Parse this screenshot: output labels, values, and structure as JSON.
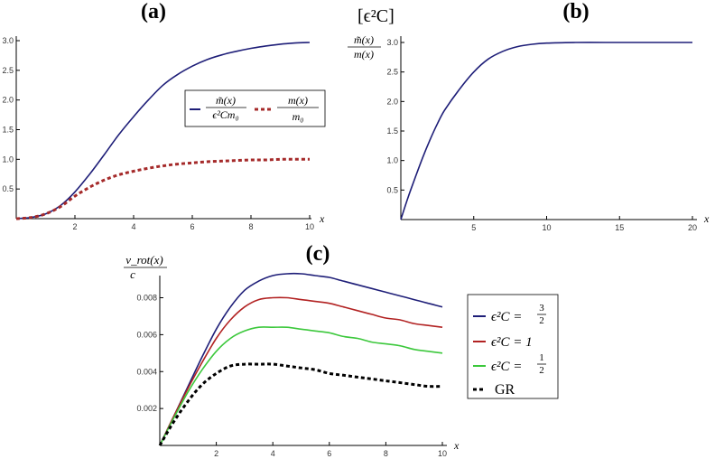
{
  "chart_data": [
    {
      "id": "a",
      "panel_label": "(a)",
      "type": "line",
      "xlabel": "x",
      "xlim": [
        0,
        10
      ],
      "ylim": [
        0,
        3.0
      ],
      "xticks": [
        "2",
        "4",
        "6",
        "8",
        "10"
      ],
      "yticks": [
        "0.5",
        "1.0",
        "1.5",
        "2.0",
        "2.5",
        "3.0"
      ],
      "legend_position": "middle-right",
      "series": [
        {
          "name": "m~(x) / (eps^2 C m0)",
          "legend_label": {
            "num": "m̃(x)",
            "den": "ϵ²Cm₀"
          },
          "color": "#1e1e78",
          "dash": "solid",
          "x": [
            0,
            0.5,
            1,
            1.5,
            2,
            2.5,
            3,
            3.5,
            4,
            4.5,
            5,
            5.5,
            6,
            6.5,
            7,
            7.5,
            8,
            8.5,
            9,
            9.5,
            10
          ],
          "values": [
            0,
            0.02,
            0.08,
            0.22,
            0.45,
            0.75,
            1.08,
            1.42,
            1.72,
            2.0,
            2.25,
            2.43,
            2.57,
            2.68,
            2.76,
            2.82,
            2.87,
            2.91,
            2.94,
            2.96,
            2.97
          ]
        },
        {
          "name": "m(x) / m0",
          "legend_label": {
            "num": "m(x)",
            "den": "m₀"
          },
          "color": "#a52a2a",
          "dash": "dashed",
          "x": [
            0,
            0.5,
            1,
            1.5,
            2,
            2.5,
            3,
            3.5,
            4,
            4.5,
            5,
            5.5,
            6,
            6.5,
            7,
            7.5,
            8,
            8.5,
            9,
            9.5,
            10
          ],
          "values": [
            0,
            0.02,
            0.08,
            0.2,
            0.38,
            0.53,
            0.65,
            0.74,
            0.8,
            0.85,
            0.89,
            0.92,
            0.94,
            0.96,
            0.97,
            0.98,
            0.99,
            0.99,
            1.0,
            1.0,
            1.0
          ]
        }
      ]
    },
    {
      "id": "b",
      "panel_label": "(b)",
      "type": "line",
      "title": "[ϵ²C]",
      "xlabel": "x",
      "ylabel": {
        "num": "m̃(x)",
        "den": "m(x)"
      },
      "xlim": [
        0,
        20
      ],
      "ylim": [
        0,
        3.0
      ],
      "xticks": [
        "5",
        "10",
        "15",
        "20"
      ],
      "yticks": [
        "0.5",
        "1.0",
        "1.5",
        "2.0",
        "2.5",
        "3.0"
      ],
      "series": [
        {
          "name": "m~(x)/m(x)",
          "color": "#1e1e78",
          "dash": "solid",
          "x": [
            0,
            0.5,
            1,
            1.5,
            2,
            2.5,
            3,
            4,
            5,
            6,
            7,
            8,
            9,
            10,
            12,
            14,
            16,
            18,
            20
          ],
          "values": [
            0,
            0.38,
            0.72,
            1.05,
            1.35,
            1.62,
            1.85,
            2.2,
            2.5,
            2.72,
            2.85,
            2.93,
            2.97,
            2.99,
            3.0,
            3.0,
            3.0,
            3.0,
            3.0
          ]
        }
      ]
    },
    {
      "id": "c",
      "panel_label": "(c)",
      "type": "line",
      "xlabel": "x",
      "ylabel": {
        "num": "v_rot(x)",
        "den": "c"
      },
      "xlim": [
        0,
        10
      ],
      "ylim": [
        0,
        0.0092
      ],
      "xticks": [
        "2",
        "4",
        "6",
        "8",
        "10"
      ],
      "yticks": [
        "0.002",
        "0.004",
        "0.006",
        "0.008"
      ],
      "legend_position": "right",
      "series": [
        {
          "name": "eps^2 C = 3/2",
          "legend_label": {
            "prefix": "ϵ²C = ",
            "frac_num": "3",
            "frac_den": "2"
          },
          "color": "#1e1e78",
          "dash": "solid",
          "x": [
            0,
            0.5,
            1,
            1.5,
            2,
            2.5,
            3,
            3.5,
            4,
            4.5,
            5,
            5.5,
            6,
            6.5,
            7,
            7.5,
            8,
            8.5,
            9,
            9.5,
            10
          ],
          "values": [
            0,
            0.0016,
            0.0032,
            0.0048,
            0.0063,
            0.0075,
            0.0084,
            0.0089,
            0.0092,
            0.0093,
            0.0093,
            0.0092,
            0.0091,
            0.0089,
            0.0087,
            0.0085,
            0.0083,
            0.0081,
            0.0079,
            0.0077,
            0.0075
          ]
        },
        {
          "name": "eps^2 C = 1",
          "legend_label": {
            "prefix": "ϵ²C = 1",
            "frac_num": "",
            "frac_den": ""
          },
          "color": "#b22222",
          "dash": "solid",
          "x": [
            0,
            0.5,
            1,
            1.5,
            2,
            2.5,
            3,
            3.5,
            4,
            4.5,
            5,
            5.5,
            6,
            6.5,
            7,
            7.5,
            8,
            8.5,
            9,
            9.5,
            10
          ],
          "values": [
            0,
            0.0016,
            0.0031,
            0.0045,
            0.0058,
            0.0068,
            0.0075,
            0.0079,
            0.008,
            0.008,
            0.0079,
            0.0078,
            0.0077,
            0.0075,
            0.0073,
            0.0071,
            0.0069,
            0.0068,
            0.0066,
            0.0065,
            0.0064
          ]
        },
        {
          "name": "eps^2 C = 1/2",
          "legend_label": {
            "prefix": "ϵ²C = ",
            "frac_num": "1",
            "frac_den": "2"
          },
          "color": "#3cc83c",
          "dash": "solid",
          "x": [
            0,
            0.5,
            1,
            1.5,
            2,
            2.5,
            3,
            3.5,
            4,
            4.5,
            5,
            5.5,
            6,
            6.5,
            7,
            7.5,
            8,
            8.5,
            9,
            9.5,
            10
          ],
          "values": [
            0,
            0.0015,
            0.0029,
            0.0041,
            0.0051,
            0.0058,
            0.0062,
            0.0064,
            0.0064,
            0.0064,
            0.0063,
            0.0062,
            0.0061,
            0.0059,
            0.0058,
            0.0056,
            0.0055,
            0.0054,
            0.0052,
            0.0051,
            0.005
          ]
        },
        {
          "name": "GR",
          "legend_label": {
            "prefix": "GR",
            "frac_num": "",
            "frac_den": ""
          },
          "color": "#000000",
          "dash": "dashed",
          "x": [
            0,
            0.5,
            1,
            1.5,
            2,
            2.5,
            3,
            3.5,
            4,
            4.5,
            5,
            5.5,
            6,
            6.5,
            7,
            7.5,
            8,
            8.5,
            9,
            9.5,
            10
          ],
          "values": [
            0,
            0.0013,
            0.0024,
            0.0033,
            0.0039,
            0.0043,
            0.0044,
            0.0044,
            0.0044,
            0.0043,
            0.0042,
            0.0041,
            0.0039,
            0.0038,
            0.0037,
            0.0036,
            0.0035,
            0.0034,
            0.0033,
            0.0032,
            0.0032
          ]
        }
      ]
    }
  ]
}
